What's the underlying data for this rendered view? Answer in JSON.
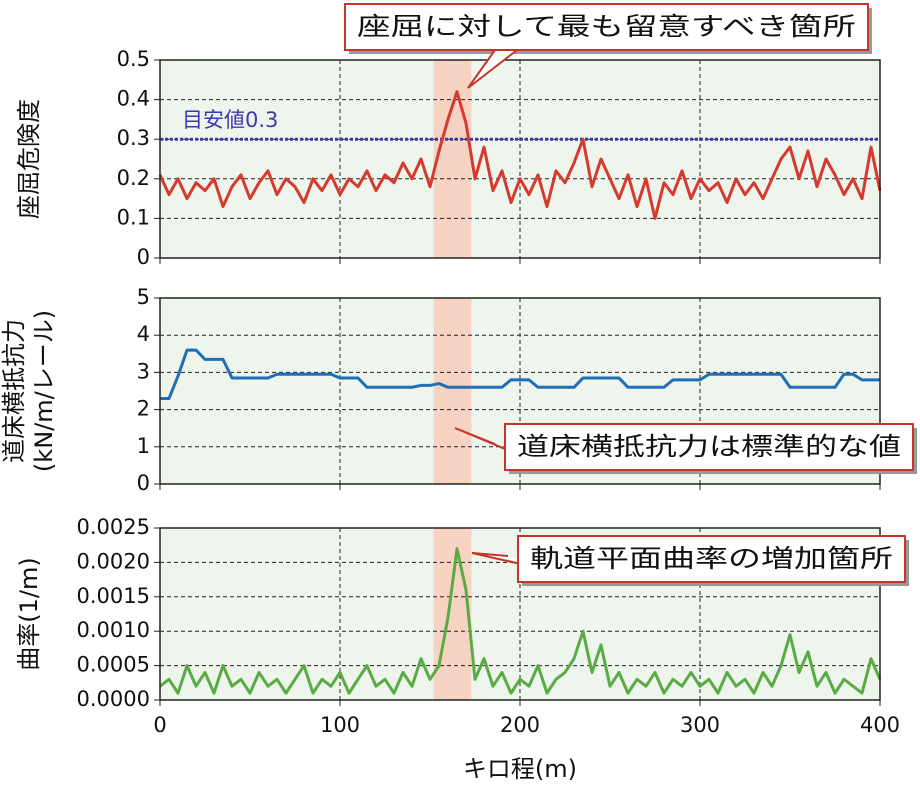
{
  "chart_data": [
    {
      "type": "line",
      "ylabel": [
        "座屈危険度"
      ],
      "ylim": [
        0,
        0.5
      ],
      "yticks": [
        0,
        0.1,
        0.2,
        0.3,
        0.4,
        0.5
      ],
      "xlim": [
        0,
        400
      ],
      "xticks": [
        0,
        100,
        200,
        300,
        400
      ],
      "grid": true,
      "highlight": [
        152,
        173
      ],
      "highlight_color": "#f6d3c3",
      "background": "#eef5ec",
      "reference": {
        "value": 0.3,
        "label": "目安値0.3",
        "color": "#3a3ab0"
      },
      "annotation": "座屈に対して最も留意すべき箇所",
      "x": [
        0,
        5,
        10,
        15,
        20,
        25,
        30,
        35,
        40,
        45,
        50,
        55,
        60,
        65,
        70,
        75,
        80,
        85,
        90,
        95,
        100,
        105,
        110,
        115,
        120,
        125,
        130,
        135,
        140,
        145,
        150,
        155,
        160,
        165,
        170,
        175,
        180,
        185,
        190,
        195,
        200,
        205,
        210,
        215,
        220,
        225,
        230,
        235,
        240,
        245,
        250,
        255,
        260,
        265,
        270,
        275,
        280,
        285,
        290,
        295,
        300,
        305,
        310,
        315,
        320,
        325,
        330,
        335,
        340,
        345,
        350,
        355,
        360,
        365,
        370,
        375,
        380,
        385,
        390,
        395,
        400
      ],
      "series": [
        {
          "name": "座屈危険度",
          "color": "#d63a2e",
          "values": [
            0.21,
            0.16,
            0.2,
            0.15,
            0.19,
            0.17,
            0.2,
            0.13,
            0.18,
            0.21,
            0.15,
            0.19,
            0.22,
            0.16,
            0.2,
            0.18,
            0.14,
            0.2,
            0.17,
            0.21,
            0.16,
            0.2,
            0.18,
            0.22,
            0.17,
            0.21,
            0.19,
            0.24,
            0.2,
            0.25,
            0.18,
            0.27,
            0.35,
            0.42,
            0.34,
            0.2,
            0.28,
            0.17,
            0.22,
            0.14,
            0.2,
            0.16,
            0.21,
            0.13,
            0.22,
            0.19,
            0.24,
            0.3,
            0.18,
            0.25,
            0.2,
            0.15,
            0.21,
            0.13,
            0.2,
            0.1,
            0.19,
            0.16,
            0.22,
            0.15,
            0.2,
            0.17,
            0.19,
            0.14,
            0.2,
            0.16,
            0.19,
            0.15,
            0.2,
            0.25,
            0.28,
            0.2,
            0.27,
            0.18,
            0.25,
            0.21,
            0.16,
            0.2,
            0.15,
            0.28,
            0.17
          ]
        }
      ]
    },
    {
      "type": "line",
      "ylabel": [
        "道床横抵抗力",
        "(kN/m/レール)"
      ],
      "ylim": [
        0,
        5
      ],
      "yticks": [
        0,
        1,
        2,
        3,
        4,
        5
      ],
      "xlim": [
        0,
        400
      ],
      "xticks": [
        0,
        100,
        200,
        300,
        400
      ],
      "grid": true,
      "highlight": [
        152,
        173
      ],
      "highlight_color": "#f6d3c3",
      "background": "#eef5ec",
      "annotation": "道床横抵抗力は標準的な値",
      "x": [
        0,
        5,
        10,
        15,
        20,
        25,
        30,
        35,
        40,
        45,
        50,
        55,
        60,
        65,
        70,
        75,
        80,
        85,
        90,
        95,
        100,
        105,
        110,
        115,
        120,
        125,
        130,
        135,
        140,
        145,
        150,
        155,
        160,
        165,
        170,
        175,
        180,
        185,
        190,
        195,
        200,
        205,
        210,
        215,
        220,
        225,
        230,
        235,
        240,
        245,
        250,
        255,
        260,
        265,
        270,
        275,
        280,
        285,
        290,
        295,
        300,
        305,
        310,
        315,
        320,
        325,
        330,
        335,
        340,
        345,
        350,
        355,
        360,
        365,
        370,
        375,
        380,
        385,
        390,
        395,
        400
      ],
      "series": [
        {
          "name": "道床横抵抗力",
          "color": "#1f6fb8",
          "values": [
            2.3,
            2.3,
            2.9,
            3.6,
            3.6,
            3.35,
            3.35,
            3.35,
            2.85,
            2.85,
            2.85,
            2.85,
            2.85,
            2.95,
            2.95,
            2.95,
            2.95,
            2.95,
            2.95,
            2.95,
            2.85,
            2.85,
            2.85,
            2.6,
            2.6,
            2.6,
            2.6,
            2.6,
            2.6,
            2.65,
            2.65,
            2.7,
            2.6,
            2.6,
            2.6,
            2.6,
            2.6,
            2.6,
            2.6,
            2.8,
            2.8,
            2.8,
            2.6,
            2.6,
            2.6,
            2.6,
            2.6,
            2.85,
            2.85,
            2.85,
            2.85,
            2.85,
            2.6,
            2.6,
            2.6,
            2.6,
            2.6,
            2.8,
            2.8,
            2.8,
            2.8,
            2.95,
            2.95,
            2.95,
            2.95,
            2.95,
            2.95,
            2.95,
            2.95,
            2.95,
            2.6,
            2.6,
            2.6,
            2.6,
            2.6,
            2.6,
            2.95,
            2.95,
            2.8,
            2.8,
            2.8
          ]
        }
      ]
    },
    {
      "type": "line",
      "ylabel": [
        "曲率(1/m)"
      ],
      "xlabel": "キロ程(m)",
      "ylim": [
        0,
        0.0025
      ],
      "yticks": [
        {
          "value": 0,
          "label": "0.0000"
        },
        0.0005,
        {
          "value": 0.001,
          "label": "0.0010"
        },
        0.0015,
        {
          "value": 0.002,
          "label": "0.0020"
        },
        0.0025
      ],
      "xlim": [
        0,
        400
      ],
      "xticks": [
        0,
        100,
        200,
        300,
        400
      ],
      "grid": true,
      "highlight": [
        152,
        173
      ],
      "highlight_color": "#f6d3c3",
      "background": "#eef5ec",
      "annotation": "軌道平面曲率の増加箇所",
      "x": [
        0,
        5,
        10,
        15,
        20,
        25,
        30,
        35,
        40,
        45,
        50,
        55,
        60,
        65,
        70,
        75,
        80,
        85,
        90,
        95,
        100,
        105,
        110,
        115,
        120,
        125,
        130,
        135,
        140,
        145,
        150,
        155,
        160,
        165,
        170,
        175,
        180,
        185,
        190,
        195,
        200,
        205,
        210,
        215,
        220,
        225,
        230,
        235,
        240,
        245,
        250,
        255,
        260,
        265,
        270,
        275,
        280,
        285,
        290,
        295,
        300,
        305,
        310,
        315,
        320,
        325,
        330,
        335,
        340,
        345,
        350,
        355,
        360,
        365,
        370,
        375,
        380,
        385,
        390,
        395,
        400
      ],
      "series": [
        {
          "name": "曲率",
          "color": "#5aab45",
          "values": [
            0.0002,
            0.0003,
            0.0001,
            0.0005,
            0.0002,
            0.0004,
            0.0001,
            0.0005,
            0.0002,
            0.0003,
            0.0001,
            0.0004,
            0.0002,
            0.0003,
            0.0001,
            0.0003,
            0.0005,
            0.0001,
            0.0003,
            0.0002,
            0.0004,
            0.0001,
            0.0003,
            0.0005,
            0.0002,
            0.0003,
            0.0001,
            0.0004,
            0.0002,
            0.0006,
            0.0003,
            0.0005,
            0.0012,
            0.0022,
            0.0016,
            0.0003,
            0.0006,
            0.0002,
            0.0004,
            0.0001,
            0.0003,
            0.0002,
            0.0005,
            0.0001,
            0.0003,
            0.0004,
            0.0006,
            0.001,
            0.0004,
            0.0008,
            0.0002,
            0.0004,
            0.0001,
            0.0003,
            0.0002,
            0.0004,
            0.0001,
            0.0003,
            0.0002,
            0.0004,
            0.0002,
            0.0003,
            0.0001,
            0.0004,
            0.0002,
            0.0003,
            0.0001,
            0.0004,
            0.0002,
            0.0005,
            0.00095,
            0.0004,
            0.0007,
            0.0002,
            0.0004,
            0.0001,
            0.0003,
            0.0002,
            0.0001,
            0.0006,
            0.0003
          ]
        }
      ]
    }
  ]
}
